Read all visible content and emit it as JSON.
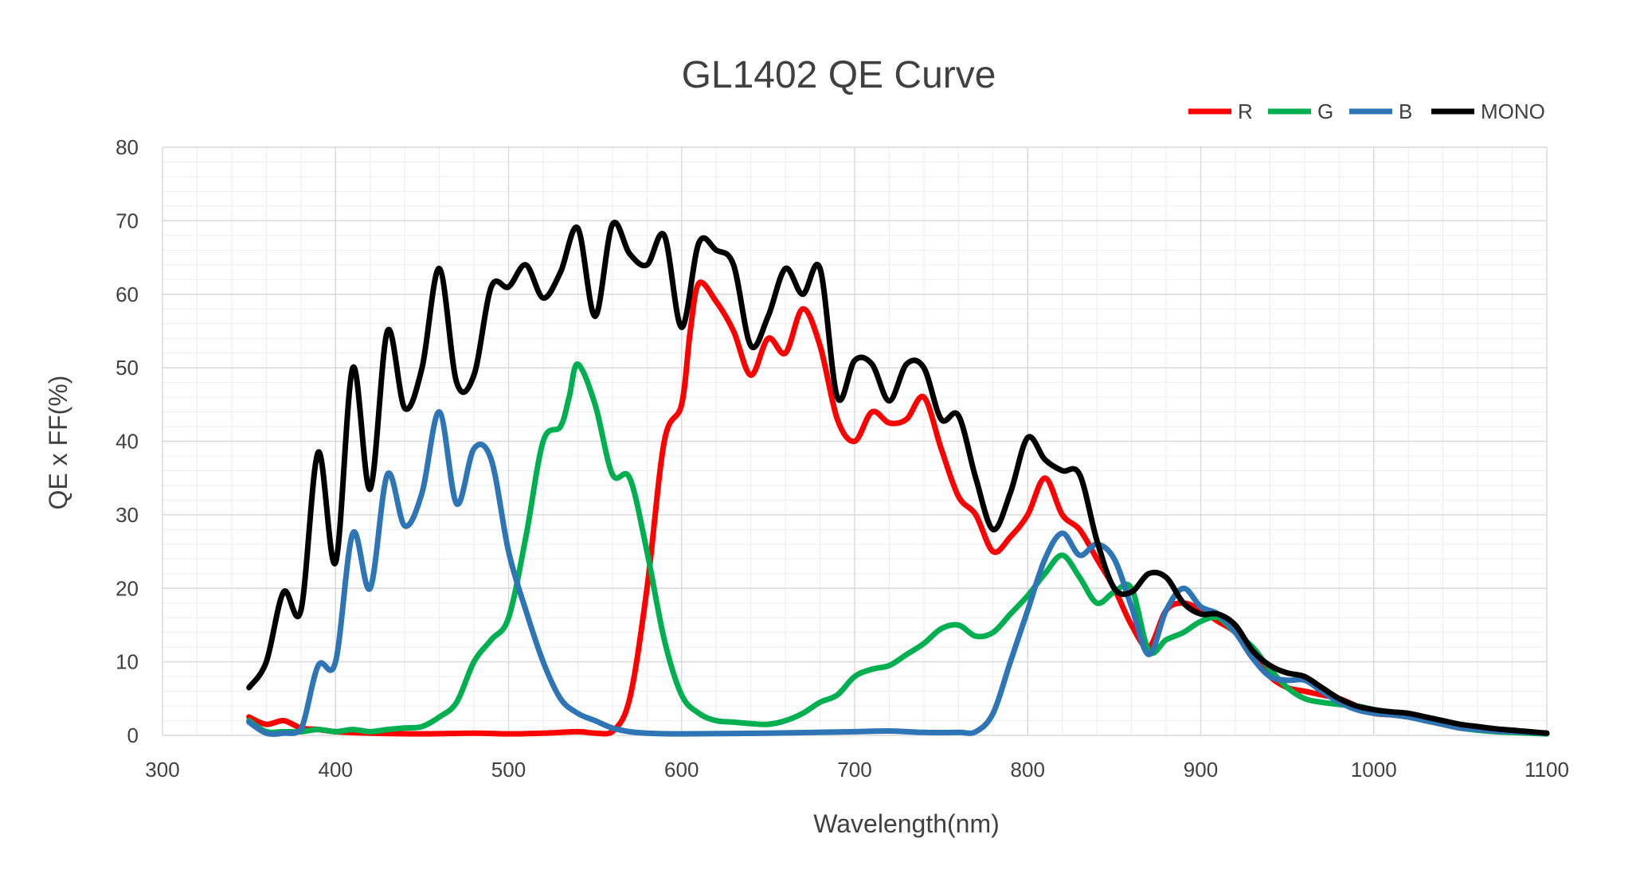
{
  "chart_data": {
    "type": "line",
    "title": "GL1402 QE Curve",
    "xlabel": "Wavelength(nm)",
    "ylabel": "QE x FF(%)",
    "xlim": [
      300,
      1100
    ],
    "ylim": [
      0,
      80
    ],
    "x_ticks": [
      300,
      400,
      500,
      600,
      700,
      800,
      900,
      1000,
      1100
    ],
    "y_ticks": [
      0,
      10,
      20,
      30,
      40,
      50,
      60,
      70,
      80
    ],
    "grid": true,
    "legend_position": "top-right",
    "series": [
      {
        "name": "R",
        "color": "#ff0000",
        "points": [
          [
            350,
            2.5
          ],
          [
            360,
            1.5
          ],
          [
            370,
            2
          ],
          [
            380,
            1
          ],
          [
            390,
            0.8
          ],
          [
            400,
            0.5
          ],
          [
            420,
            0.3
          ],
          [
            450,
            0.2
          ],
          [
            480,
            0.3
          ],
          [
            500,
            0.2
          ],
          [
            520,
            0.3
          ],
          [
            540,
            0.5
          ],
          [
            550,
            0.3
          ],
          [
            560,
            0.5
          ],
          [
            570,
            5
          ],
          [
            580,
            20
          ],
          [
            590,
            40
          ],
          [
            600,
            45
          ],
          [
            605,
            55
          ],
          [
            610,
            61.5
          ],
          [
            620,
            59
          ],
          [
            630,
            55
          ],
          [
            640,
            49
          ],
          [
            650,
            54
          ],
          [
            660,
            52
          ],
          [
            670,
            58
          ],
          [
            680,
            53
          ],
          [
            690,
            43
          ],
          [
            700,
            40
          ],
          [
            710,
            44
          ],
          [
            720,
            42.5
          ],
          [
            730,
            43
          ],
          [
            740,
            46
          ],
          [
            750,
            39
          ],
          [
            760,
            32.5
          ],
          [
            770,
            30
          ],
          [
            780,
            25
          ],
          [
            790,
            27
          ],
          [
            800,
            30
          ],
          [
            810,
            35
          ],
          [
            820,
            30
          ],
          [
            830,
            28
          ],
          [
            840,
            24
          ],
          [
            850,
            20
          ],
          [
            860,
            15
          ],
          [
            870,
            12
          ],
          [
            880,
            17
          ],
          [
            890,
            18
          ],
          [
            900,
            17
          ],
          [
            910,
            15.5
          ],
          [
            920,
            14
          ],
          [
            930,
            11
          ],
          [
            940,
            8
          ],
          [
            950,
            6.5
          ],
          [
            960,
            6
          ],
          [
            970,
            5.5
          ],
          [
            980,
            5
          ],
          [
            990,
            4
          ],
          [
            1000,
            3
          ],
          [
            1010,
            2.8
          ],
          [
            1020,
            2.5
          ],
          [
            1030,
            2
          ],
          [
            1040,
            1.5
          ],
          [
            1050,
            1
          ],
          [
            1060,
            0.8
          ],
          [
            1070,
            0.6
          ],
          [
            1080,
            0.5
          ],
          [
            1090,
            0.4
          ],
          [
            1100,
            0.3
          ]
        ]
      },
      {
        "name": "G",
        "color": "#00b050",
        "points": [
          [
            350,
            2
          ],
          [
            360,
            0.5
          ],
          [
            370,
            0.5
          ],
          [
            380,
            0.5
          ],
          [
            390,
            0.8
          ],
          [
            400,
            0.5
          ],
          [
            410,
            0.8
          ],
          [
            420,
            0.5
          ],
          [
            430,
            0.8
          ],
          [
            440,
            1
          ],
          [
            450,
            1.2
          ],
          [
            460,
            2.5
          ],
          [
            470,
            4.5
          ],
          [
            480,
            10
          ],
          [
            490,
            13
          ],
          [
            500,
            16
          ],
          [
            510,
            27
          ],
          [
            520,
            40
          ],
          [
            530,
            42
          ],
          [
            535,
            46
          ],
          [
            540,
            50.5
          ],
          [
            550,
            45
          ],
          [
            560,
            35.5
          ],
          [
            570,
            35
          ],
          [
            580,
            25
          ],
          [
            590,
            13
          ],
          [
            600,
            5.5
          ],
          [
            610,
            3
          ],
          [
            620,
            2
          ],
          [
            630,
            1.8
          ],
          [
            640,
            1.6
          ],
          [
            650,
            1.5
          ],
          [
            660,
            2
          ],
          [
            670,
            3
          ],
          [
            680,
            4.5
          ],
          [
            690,
            5.5
          ],
          [
            700,
            8
          ],
          [
            710,
            9
          ],
          [
            720,
            9.5
          ],
          [
            730,
            11
          ],
          [
            740,
            12.5
          ],
          [
            750,
            14.5
          ],
          [
            760,
            15
          ],
          [
            770,
            13.5
          ],
          [
            780,
            14
          ],
          [
            790,
            16.5
          ],
          [
            800,
            19
          ],
          [
            810,
            22
          ],
          [
            820,
            24.5
          ],
          [
            830,
            21.5
          ],
          [
            840,
            18
          ],
          [
            850,
            19.5
          ],
          [
            860,
            20
          ],
          [
            870,
            11.5
          ],
          [
            880,
            13
          ],
          [
            890,
            14
          ],
          [
            900,
            15.5
          ],
          [
            910,
            16
          ],
          [
            920,
            14
          ],
          [
            930,
            12
          ],
          [
            940,
            9
          ],
          [
            950,
            6.5
          ],
          [
            960,
            5
          ],
          [
            970,
            4.5
          ],
          [
            980,
            4.2
          ],
          [
            990,
            4
          ],
          [
            1000,
            3.5
          ],
          [
            1010,
            3
          ],
          [
            1020,
            2.5
          ],
          [
            1030,
            2
          ],
          [
            1040,
            1.5
          ],
          [
            1050,
            1
          ],
          [
            1060,
            0.7
          ],
          [
            1070,
            0.5
          ],
          [
            1080,
            0.4
          ],
          [
            1090,
            0.3
          ],
          [
            1100,
            0.2
          ]
        ]
      },
      {
        "name": "B",
        "color": "#2e75b6",
        "points": [
          [
            350,
            1.8
          ],
          [
            360,
            0.3
          ],
          [
            370,
            0.3
          ],
          [
            380,
            0.8
          ],
          [
            390,
            9.5
          ],
          [
            400,
            10
          ],
          [
            410,
            27.5
          ],
          [
            420,
            20
          ],
          [
            430,
            35.5
          ],
          [
            440,
            28.5
          ],
          [
            450,
            33
          ],
          [
            460,
            44
          ],
          [
            470,
            31.5
          ],
          [
            480,
            39
          ],
          [
            490,
            37.5
          ],
          [
            500,
            25
          ],
          [
            510,
            17
          ],
          [
            520,
            10
          ],
          [
            530,
            5
          ],
          [
            540,
            3
          ],
          [
            550,
            2
          ],
          [
            560,
            1
          ],
          [
            570,
            0.5
          ],
          [
            580,
            0.3
          ],
          [
            600,
            0.2
          ],
          [
            650,
            0.3
          ],
          [
            700,
            0.5
          ],
          [
            720,
            0.6
          ],
          [
            740,
            0.4
          ],
          [
            760,
            0.4
          ],
          [
            770,
            0.5
          ],
          [
            780,
            3
          ],
          [
            790,
            10
          ],
          [
            800,
            17
          ],
          [
            810,
            24
          ],
          [
            820,
            27.5
          ],
          [
            830,
            24.5
          ],
          [
            840,
            26
          ],
          [
            850,
            24
          ],
          [
            860,
            17.5
          ],
          [
            870,
            11
          ],
          [
            880,
            17
          ],
          [
            890,
            20
          ],
          [
            900,
            17.5
          ],
          [
            910,
            16.5
          ],
          [
            920,
            14
          ],
          [
            930,
            10.5
          ],
          [
            940,
            8
          ],
          [
            950,
            7.5
          ],
          [
            960,
            7.5
          ],
          [
            970,
            6
          ],
          [
            980,
            4.5
          ],
          [
            990,
            3.5
          ],
          [
            1000,
            3
          ],
          [
            1010,
            2.8
          ],
          [
            1020,
            2.5
          ],
          [
            1030,
            2
          ],
          [
            1040,
            1.5
          ],
          [
            1050,
            1
          ],
          [
            1060,
            0.8
          ],
          [
            1070,
            0.6
          ],
          [
            1080,
            0.5
          ],
          [
            1090,
            0.4
          ],
          [
            1100,
            0.3
          ]
        ]
      },
      {
        "name": "MONO",
        "color": "#000000",
        "points": [
          [
            350,
            6.5
          ],
          [
            360,
            10
          ],
          [
            370,
            19.5
          ],
          [
            380,
            17
          ],
          [
            390,
            38.5
          ],
          [
            400,
            23.5
          ],
          [
            410,
            50
          ],
          [
            420,
            33.5
          ],
          [
            430,
            55
          ],
          [
            440,
            44.5
          ],
          [
            450,
            50
          ],
          [
            460,
            63.5
          ],
          [
            470,
            48
          ],
          [
            480,
            49
          ],
          [
            490,
            61
          ],
          [
            500,
            61
          ],
          [
            510,
            64
          ],
          [
            520,
            59.5
          ],
          [
            530,
            63
          ],
          [
            540,
            69
          ],
          [
            550,
            57
          ],
          [
            560,
            69.5
          ],
          [
            570,
            65.5
          ],
          [
            580,
            64
          ],
          [
            590,
            68
          ],
          [
            600,
            55.5
          ],
          [
            610,
            67
          ],
          [
            620,
            66
          ],
          [
            630,
            64
          ],
          [
            640,
            53
          ],
          [
            650,
            57
          ],
          [
            660,
            63.5
          ],
          [
            670,
            60
          ],
          [
            680,
            63.5
          ],
          [
            690,
            46
          ],
          [
            700,
            51
          ],
          [
            710,
            50.5
          ],
          [
            720,
            45.5
          ],
          [
            730,
            50.5
          ],
          [
            740,
            50
          ],
          [
            750,
            43
          ],
          [
            760,
            43.5
          ],
          [
            770,
            35
          ],
          [
            780,
            28
          ],
          [
            790,
            33
          ],
          [
            800,
            40.5
          ],
          [
            810,
            37.5
          ],
          [
            820,
            36
          ],
          [
            830,
            35.5
          ],
          [
            840,
            26.5
          ],
          [
            850,
            20
          ],
          [
            860,
            19.5
          ],
          [
            870,
            22
          ],
          [
            880,
            21.5
          ],
          [
            890,
            18
          ],
          [
            900,
            16.5
          ],
          [
            910,
            16.5
          ],
          [
            920,
            15
          ],
          [
            930,
            11.5
          ],
          [
            940,
            9.5
          ],
          [
            950,
            8.5
          ],
          [
            960,
            8
          ],
          [
            970,
            6.5
          ],
          [
            980,
            5
          ],
          [
            990,
            4
          ],
          [
            1000,
            3.5
          ],
          [
            1010,
            3.2
          ],
          [
            1020,
            3
          ],
          [
            1030,
            2.5
          ],
          [
            1040,
            2
          ],
          [
            1050,
            1.5
          ],
          [
            1060,
            1.2
          ],
          [
            1070,
            0.9
          ],
          [
            1080,
            0.7
          ],
          [
            1090,
            0.5
          ],
          [
            1100,
            0.3
          ]
        ]
      }
    ]
  }
}
